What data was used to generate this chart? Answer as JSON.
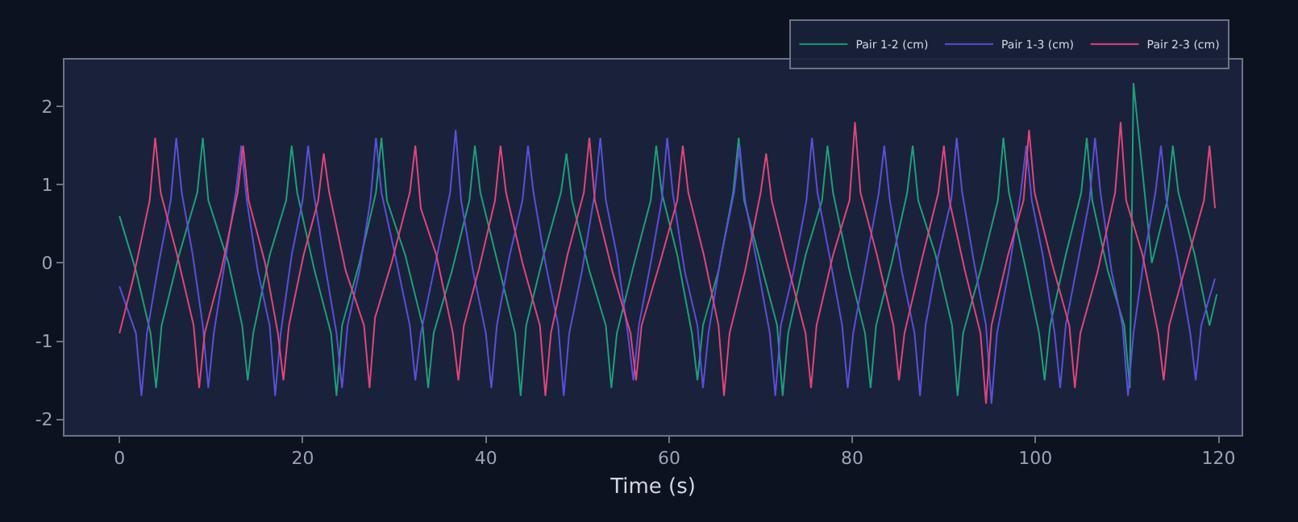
{
  "chart_data": {
    "type": "line",
    "xlabel": "Time (s)",
    "xlim": [
      -6,
      122.5
    ],
    "ylim": [
      -2.2,
      2.6
    ],
    "xticks": [
      0,
      20,
      40,
      60,
      80,
      100,
      120
    ],
    "yticks": [
      -2,
      -1,
      0,
      1,
      2
    ],
    "grid": false,
    "legend": "top right",
    "line_style": "solid",
    "marker": "none",
    "series": [
      {
        "name": "Pair 1-2 (cm)",
        "color": "#1f9e7a",
        "x": [
          0,
          1.8,
          3.4,
          4,
          4.6,
          6.5,
          8.5,
          9.1,
          9.7,
          11.9,
          13.4,
          14,
          14.6,
          16.4,
          18.2,
          18.8,
          19.4,
          21.3,
          23.1,
          23.7,
          24.3,
          26.2,
          28,
          28.6,
          29.2,
          31.2,
          33.1,
          33.7,
          34.3,
          36.3,
          38.2,
          38.8,
          39.4,
          41.3,
          43.2,
          43.8,
          44.4,
          46.3,
          48.2,
          48.8,
          49.4,
          51.3,
          53.1,
          53.7,
          54.3,
          56.2,
          58,
          58.6,
          59.2,
          60.9,
          62.5,
          63.1,
          63.7,
          65.4,
          67,
          67.6,
          68.2,
          70,
          71.8,
          72.4,
          73,
          74.9,
          76.7,
          77.3,
          77.9,
          79.7,
          81.4,
          82,
          82.6,
          84.3,
          86,
          86.6,
          87.2,
          89.1,
          90.9,
          91.5,
          92.1,
          94,
          95.9,
          96.5,
          97.1,
          98.8,
          100.4,
          101,
          101.6,
          103.3,
          105,
          105.6,
          106.2,
          107.9,
          109.7,
          110.3,
          110.7,
          112.7,
          114.4,
          115,
          115.6,
          117.4,
          119,
          119.8
        ],
        "values": [
          0.6,
          -0.1,
          -0.9,
          -1.6,
          -0.8,
          0.1,
          0.9,
          1.6,
          0.8,
          0.0,
          -0.8,
          -1.5,
          -0.9,
          0.1,
          0.8,
          1.5,
          0.9,
          -0.1,
          -0.9,
          -1.7,
          -0.8,
          0.0,
          0.9,
          1.6,
          0.8,
          0.1,
          -0.8,
          -1.6,
          -0.9,
          -0.1,
          0.8,
          1.5,
          0.9,
          0.0,
          -0.9,
          -1.7,
          -0.8,
          0.1,
          0.9,
          1.4,
          0.8,
          -0.1,
          -0.8,
          -1.6,
          -0.9,
          0.0,
          0.8,
          1.5,
          0.9,
          0.1,
          -0.9,
          -1.5,
          -0.8,
          -0.1,
          0.9,
          1.6,
          0.8,
          0.0,
          -0.8,
          -1.7,
          -0.9,
          0.1,
          0.8,
          1.5,
          0.9,
          -0.1,
          -0.9,
          -1.6,
          -0.8,
          0.0,
          0.9,
          1.5,
          0.8,
          0.1,
          -0.8,
          -1.7,
          -0.9,
          -0.1,
          0.8,
          1.6,
          0.9,
          0.0,
          -0.9,
          -1.5,
          -0.8,
          0.1,
          0.9,
          1.6,
          0.8,
          -0.1,
          -0.8,
          -1.6,
          2.3,
          0.0,
          0.8,
          1.5,
          0.9,
          0.1,
          -0.8,
          -0.4
        ]
      },
      {
        "name": "Pair 1-3 (cm)",
        "color": "#5b4fd6",
        "x": [
          0,
          1.8,
          2.4,
          3.0,
          4.3,
          5.6,
          6.2,
          6.8,
          8,
          9.1,
          9.7,
          10.3,
          11.5,
          12.7,
          13.3,
          13.9,
          15.1,
          16.4,
          17,
          17.6,
          18.8,
          20,
          20.6,
          21.2,
          22.4,
          23.7,
          24.3,
          24.9,
          26.2,
          27.4,
          28,
          28.6,
          30.1,
          31.7,
          32.3,
          32.9,
          34.5,
          36.1,
          36.7,
          37.3,
          38.6,
          40,
          40.6,
          41.2,
          42.6,
          44,
          44.6,
          45.2,
          46.5,
          47.9,
          48.5,
          49.1,
          50.5,
          51.9,
          52.5,
          53.1,
          54.3,
          55.5,
          56.1,
          56.7,
          58,
          59.2,
          59.8,
          60.4,
          61.7,
          63.1,
          63.7,
          64.3,
          65.7,
          67.1,
          67.7,
          68.3,
          69.6,
          71,
          71.6,
          72.2,
          73.6,
          75,
          75.6,
          76.2,
          77.5,
          78.9,
          79.5,
          80.1,
          81.5,
          82.9,
          83.5,
          84.1,
          85.4,
          86.8,
          87.4,
          88,
          89.4,
          90.8,
          91.4,
          92,
          93.3,
          94.6,
          95.2,
          95.8,
          97.1,
          98.4,
          99,
          99.6,
          100.8,
          102.1,
          102.7,
          103.3,
          104.6,
          105.9,
          106.5,
          107.1,
          108.3,
          109.5,
          110.1,
          110.7,
          111.9,
          113.1,
          113.7,
          114.3,
          115.6,
          116.9,
          117.5,
          118.1,
          119.6
        ],
        "values": [
          -0.3,
          -0.9,
          -1.7,
          -0.9,
          0.0,
          0.8,
          1.6,
          0.9,
          0.1,
          -0.8,
          -1.6,
          -0.9,
          0.0,
          0.9,
          1.5,
          0.8,
          -0.1,
          -0.8,
          -1.7,
          -0.9,
          0.1,
          0.8,
          1.5,
          0.9,
          0.0,
          -0.9,
          -1.6,
          -0.8,
          -0.1,
          0.8,
          1.6,
          0.9,
          0.1,
          -0.8,
          -1.5,
          -0.9,
          0.0,
          0.9,
          1.7,
          0.8,
          -0.1,
          -0.9,
          -1.6,
          -0.8,
          0.1,
          0.8,
          1.5,
          0.9,
          0.0,
          -0.8,
          -1.7,
          -0.9,
          -0.1,
          0.9,
          1.6,
          0.8,
          0.1,
          -0.9,
          -1.5,
          -0.8,
          0.0,
          0.8,
          1.6,
          0.9,
          -0.1,
          -0.8,
          -1.6,
          -0.9,
          0.1,
          0.9,
          1.5,
          0.8,
          0.0,
          -0.9,
          -1.7,
          -0.8,
          -0.1,
          0.8,
          1.6,
          0.9,
          0.1,
          -0.8,
          -1.6,
          -0.9,
          0.0,
          0.9,
          1.5,
          0.8,
          -0.1,
          -0.9,
          -1.7,
          -0.8,
          0.1,
          0.8,
          1.6,
          0.9,
          0.0,
          -0.8,
          -1.8,
          -0.9,
          -0.1,
          0.9,
          1.5,
          0.8,
          0.1,
          -0.9,
          -1.6,
          -0.8,
          0.0,
          0.8,
          1.6,
          0.9,
          -0.1,
          -0.8,
          -1.7,
          -0.9,
          0.1,
          0.9,
          1.5,
          0.8,
          0.0,
          -0.9,
          -1.5,
          -0.8,
          -0.2
        ]
      },
      {
        "name": "Pair 2-3 (cm)",
        "color": "#e0457b",
        "x": [
          0,
          1.5,
          3.3,
          3.9,
          4.5,
          6.3,
          8.1,
          8.7,
          9.3,
          11.1,
          12.9,
          13.5,
          14.1,
          15.9,
          17.3,
          17.9,
          18.5,
          20.1,
          21.7,
          22.3,
          22.9,
          24.7,
          26.7,
          27.3,
          27.9,
          29.7,
          31.7,
          32.3,
          32.9,
          34.6,
          36.4,
          37,
          37.6,
          39.2,
          41,
          41.6,
          42.2,
          44,
          45.9,
          46.5,
          47.1,
          48.9,
          50.7,
          51.3,
          51.9,
          53.8,
          55.8,
          56.4,
          57,
          59,
          60.9,
          61.5,
          62.1,
          63.8,
          65.4,
          66,
          66.6,
          68.3,
          70,
          70.6,
          71.2,
          72.9,
          74.9,
          75.5,
          76.1,
          77.9,
          79.7,
          80.3,
          80.9,
          82.7,
          84.5,
          85.1,
          85.7,
          87.5,
          89.4,
          90,
          90.6,
          92.3,
          94,
          94.6,
          95.2,
          97,
          98.7,
          99.3,
          99.9,
          101.8,
          103.7,
          104.3,
          104.9,
          106.8,
          108.7,
          109.3,
          109.9,
          111.7,
          113.4,
          114,
          114.6,
          116.5,
          118.4,
          119,
          119.6
        ],
        "values": [
          -0.9,
          -0.2,
          0.8,
          1.6,
          0.9,
          0.1,
          -0.8,
          -1.6,
          -0.9,
          -0.1,
          0.9,
          1.5,
          0.8,
          0.0,
          -0.9,
          -1.5,
          -0.8,
          0.1,
          0.8,
          1.4,
          0.9,
          -0.1,
          -0.8,
          -1.6,
          -0.7,
          0.0,
          0.9,
          1.5,
          0.7,
          0.1,
          -0.9,
          -1.5,
          -0.8,
          -0.1,
          0.8,
          1.5,
          0.9,
          0.0,
          -0.8,
          -1.7,
          -0.9,
          0.1,
          0.9,
          1.6,
          0.8,
          -0.1,
          -0.9,
          -1.5,
          -0.8,
          0.0,
          0.8,
          1.5,
          0.9,
          0.1,
          -0.8,
          -1.7,
          -0.9,
          -0.1,
          0.9,
          1.4,
          0.8,
          0.0,
          -0.9,
          -1.6,
          -0.8,
          0.1,
          0.8,
          1.8,
          0.9,
          0.1,
          -0.8,
          -1.5,
          -0.9,
          0.0,
          0.9,
          1.5,
          0.8,
          -0.1,
          -0.9,
          -1.8,
          -0.8,
          0.1,
          0.8,
          1.7,
          0.9,
          0.0,
          -0.8,
          -1.6,
          -0.9,
          -0.1,
          0.9,
          1.8,
          0.8,
          0.1,
          -0.9,
          -1.5,
          -0.8,
          0.0,
          0.8,
          1.5,
          0.7
        ]
      }
    ]
  }
}
